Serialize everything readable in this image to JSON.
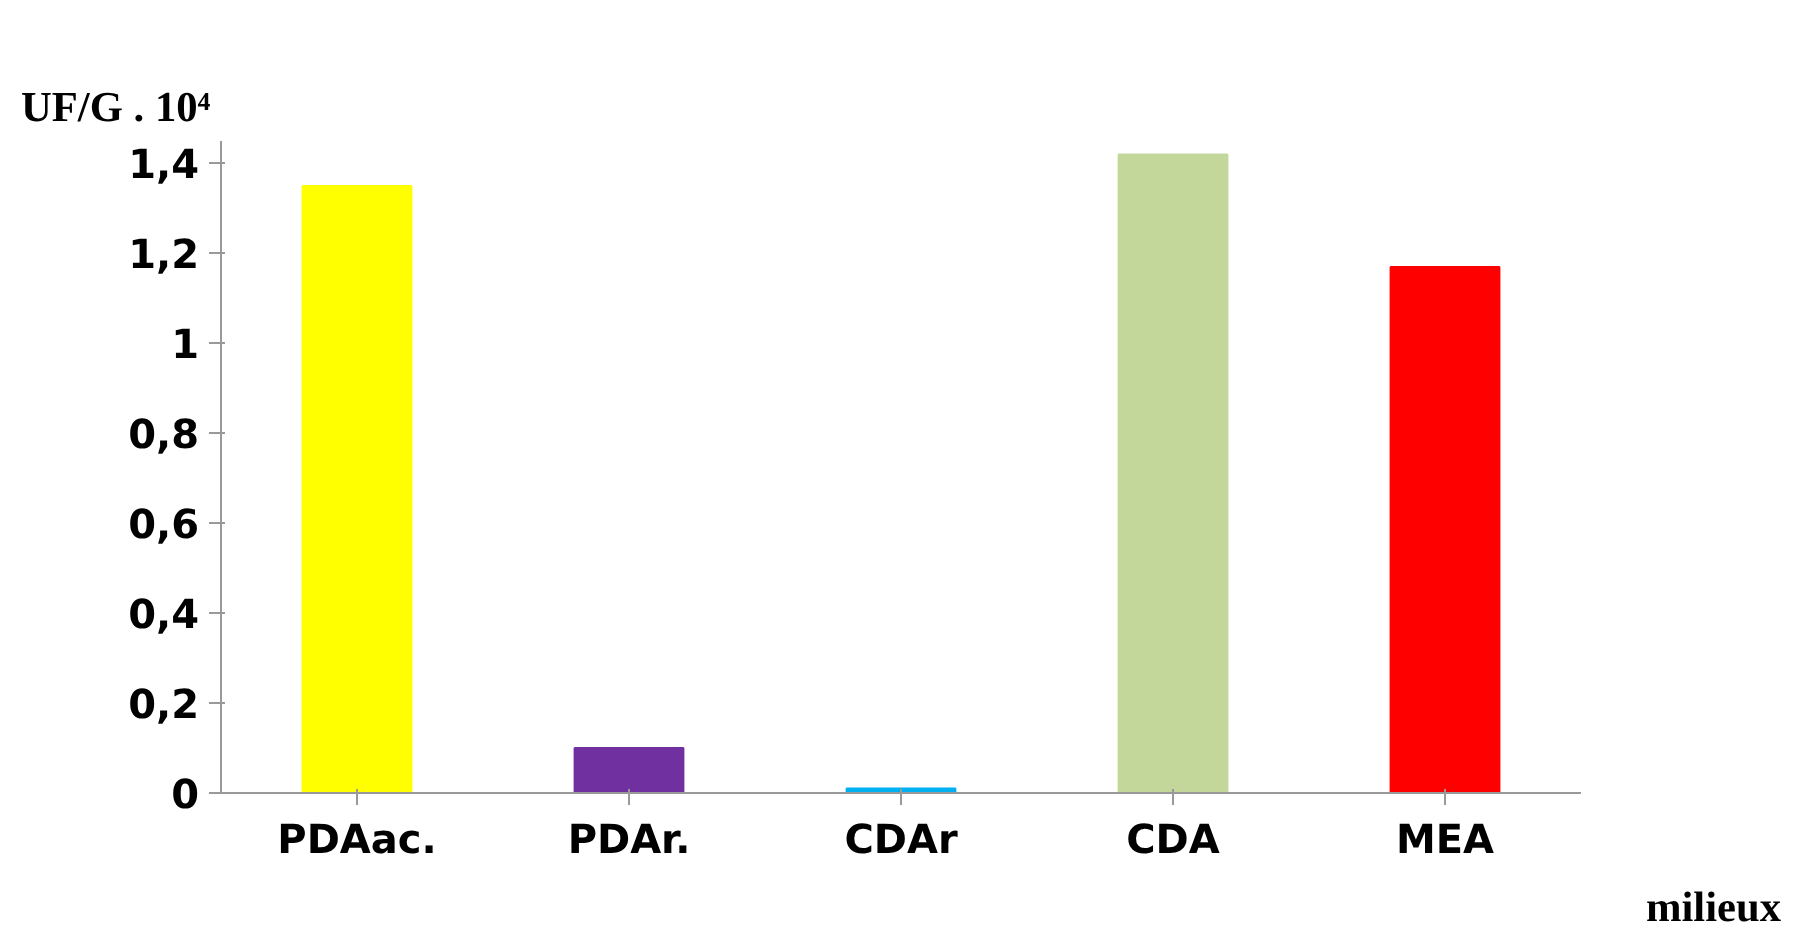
{
  "chart_data": {
    "type": "bar",
    "ylabel": "UF/G . 10⁴",
    "xlabel": "milieux",
    "categories": [
      "PDAac.",
      "PDAr.",
      "CDAr",
      "CDA",
      "MEA"
    ],
    "values": [
      1.35,
      0.1,
      0.01,
      1.42,
      1.17
    ],
    "colors": [
      "#ffff00",
      "#7030a0",
      "#00b0f0",
      "#c4d79b",
      "#ff0000"
    ],
    "ylim": [
      0,
      1.45
    ],
    "yticks": [
      {
        "value": 0,
        "label": "0"
      },
      {
        "value": 0.2,
        "label": "0,2"
      },
      {
        "value": 0.4,
        "label": "0,4"
      },
      {
        "value": 0.6,
        "label": "0,6"
      },
      {
        "value": 0.8,
        "label": "0,8"
      },
      {
        "value": 1,
        "label": "1"
      },
      {
        "value": 1.2,
        "label": "1,2"
      },
      {
        "value": 1.4,
        "label": "1,4"
      }
    ],
    "grid": false
  }
}
